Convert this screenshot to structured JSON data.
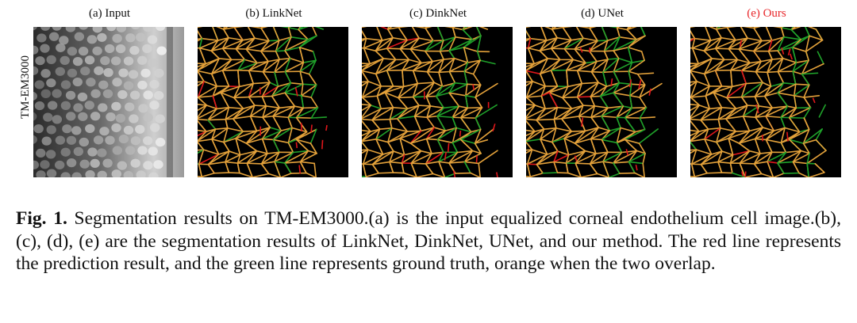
{
  "figure": {
    "row_label": "TM-EM3000",
    "panels": [
      {
        "title": "(a) Input",
        "kind": "input"
      },
      {
        "title": "(b) LinkNet",
        "kind": "segmentation"
      },
      {
        "title": "(c) DinkNet",
        "kind": "segmentation"
      },
      {
        "title": "(d) UNet",
        "kind": "segmentation"
      },
      {
        "title": "(e) Ours",
        "kind": "segmentation",
        "highlight_color": "#e8262a"
      }
    ],
    "colors": {
      "prediction": "#e0161b",
      "ground_truth": "#1fa12a",
      "overlap": "#e3a13a",
      "background": "#000000"
    }
  },
  "caption": {
    "label": "Fig. 1.",
    "text": "Segmentation results on TM-EM3000.(a) is the input equalized corneal endothelium cell image.(b), (c), (d), (e) are the segmentation results of LinkNet, DinkNet, UNet, and our method. The red line represents the prediction result, and the green line represents ground truth, orange when the two overlap."
  }
}
